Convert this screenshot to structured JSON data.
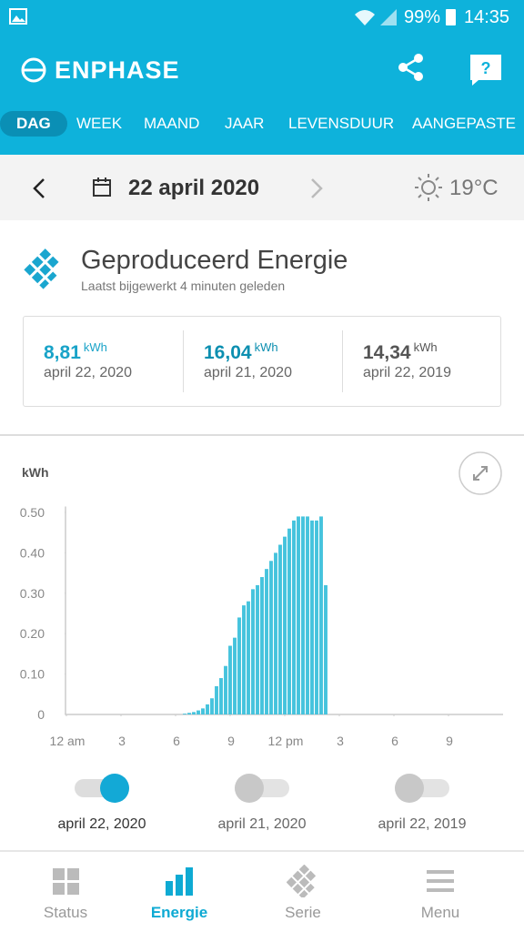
{
  "status_bar": {
    "battery": "99%",
    "time": "14:35"
  },
  "header": {
    "brand": "ENPHASE"
  },
  "tabs": [
    "DAG",
    "WEEK",
    "MAAND",
    "JAAR",
    "LEVENSDUUR",
    "AANGEPASTE"
  ],
  "date_bar": {
    "date": "22 april 2020",
    "temperature": "19°C"
  },
  "section": {
    "title": "Geproduceerd Energie",
    "subtitle": "Laatst bijgewerkt 4 minuten geleden"
  },
  "summary": [
    {
      "value": "8,81",
      "unit": "kWh",
      "date": "april 22, 2020"
    },
    {
      "value": "16,04",
      "unit": "kWh",
      "date": "april 21, 2020"
    },
    {
      "value": "14,34",
      "unit": "kWh",
      "date": "april 22, 2019"
    }
  ],
  "chart_data": {
    "type": "bar",
    "ylabel": "kWh",
    "color": "#45c3dd",
    "xlim": [
      0,
      24
    ],
    "xticks": [
      {
        "value": 0,
        "label": "12 am"
      },
      3,
      6,
      9,
      {
        "value": 12,
        "label": "12 pm"
      },
      {
        "value": 15,
        "label": "3"
      },
      {
        "value": 18,
        "label": "6"
      },
      {
        "value": 21,
        "label": "9"
      }
    ],
    "ylim": [
      0,
      0.51
    ],
    "yticks": [
      0,
      {
        "value": 0.1,
        "label": "0.10"
      },
      {
        "value": 0.2,
        "label": "0.20"
      },
      {
        "value": 0.3,
        "label": "0.30"
      },
      {
        "value": 0.4,
        "label": "0.40"
      },
      {
        "value": 0.5,
        "label": "0.50"
      }
    ],
    "x": [
      6.5,
      6.75,
      7,
      7.25,
      7.5,
      7.75,
      8,
      8.25,
      8.5,
      8.75,
      9,
      9.25,
      9.5,
      9.75,
      10,
      10.25,
      10.5,
      10.75,
      11,
      11.25,
      11.5,
      11.75,
      12,
      12.25,
      12.5,
      12.75,
      13,
      13.25,
      13.5,
      13.75,
      14,
      14.25
    ],
    "values": [
      0.002,
      0.004,
      0.006,
      0.01,
      0.015,
      0.025,
      0.04,
      0.07,
      0.09,
      0.12,
      0.17,
      0.19,
      0.24,
      0.27,
      0.28,
      0.31,
      0.32,
      0.34,
      0.36,
      0.38,
      0.4,
      0.42,
      0.44,
      0.46,
      0.48,
      0.49,
      0.49,
      0.49,
      0.48,
      0.48,
      0.49,
      0.32
    ]
  },
  "toggles": [
    {
      "label": "april 22, 2020",
      "on": true
    },
    {
      "label": "april 21, 2020",
      "on": false
    },
    {
      "label": "april 22, 2019",
      "on": false
    }
  ],
  "nav": [
    {
      "label": "Status",
      "active": false
    },
    {
      "label": "Energie",
      "active": true
    },
    {
      "label": "Serie",
      "active": false
    },
    {
      "label": "Menu",
      "active": false
    }
  ]
}
